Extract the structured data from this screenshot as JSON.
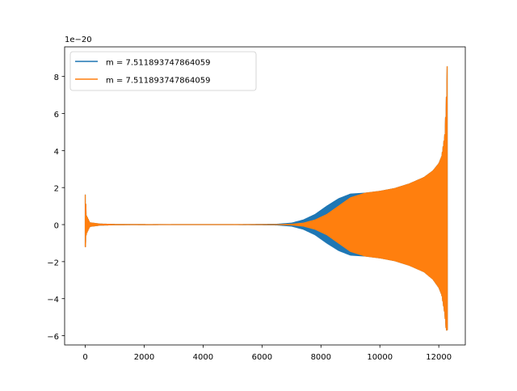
{
  "chart_data": {
    "type": "line",
    "title": "",
    "xlabel": "",
    "ylabel": "",
    "y_offset_label": "1e−20",
    "xlim": [
      -700,
      12900
    ],
    "ylim": [
      -6.5,
      9.6
    ],
    "xticks": [
      0,
      2000,
      4000,
      6000,
      8000,
      10000,
      12000
    ],
    "xtick_labels": [
      "0",
      "2000",
      "4000",
      "6000",
      "8000",
      "10000",
      "12000"
    ],
    "yticks": [
      -6,
      -4,
      -2,
      0,
      2,
      4,
      6,
      8
    ],
    "ytick_labels": [
      "−6",
      "−4",
      "−2",
      "0",
      "2",
      "4",
      "6",
      "8"
    ],
    "grid": false,
    "legend_position": "upper-left",
    "series": [
      {
        "name": "m = 7.511893747864059",
        "color": "#1f77b4",
        "envelope_x": [
          0,
          30,
          150,
          500,
          1000,
          3000,
          5000,
          6500,
          7000,
          7400,
          7800,
          8200,
          8600,
          9000,
          9500,
          10000,
          10500,
          11000,
          11500,
          11800,
          12000,
          12100,
          12200,
          12250,
          12290
        ],
        "envelope_upper": [
          1.6,
          0.5,
          0.1,
          0.03,
          0.01,
          0.0,
          0.0,
          0.02,
          0.08,
          0.25,
          0.55,
          1.0,
          1.4,
          1.65,
          1.7,
          1.8,
          1.95,
          2.2,
          2.55,
          2.9,
          3.3,
          3.7,
          4.8,
          6.5,
          8.9
        ],
        "envelope_lower": [
          -1.2,
          -0.5,
          -0.1,
          -0.03,
          -0.01,
          0.0,
          0.0,
          -0.02,
          -0.08,
          -0.25,
          -0.55,
          -1.0,
          -1.4,
          -1.65,
          -1.7,
          -1.8,
          -1.95,
          -2.2,
          -2.55,
          -2.95,
          -3.4,
          -3.8,
          -4.8,
          -5.7,
          -5.7
        ]
      },
      {
        "name": "m = 7.511893747864059",
        "color": "#ff7f0e",
        "envelope_x": [
          0,
          30,
          150,
          500,
          1000,
          3000,
          5000,
          6500,
          7000,
          7400,
          7800,
          8200,
          8600,
          9000,
          9500,
          10000,
          10500,
          11000,
          11500,
          11800,
          12000,
          12100,
          12200,
          12250,
          12290
        ],
        "envelope_upper": [
          1.6,
          0.5,
          0.1,
          0.03,
          0.01,
          0.0,
          0.0,
          0.0,
          0.02,
          0.08,
          0.25,
          0.55,
          1.0,
          1.45,
          1.7,
          1.8,
          1.95,
          2.2,
          2.55,
          2.9,
          3.3,
          3.7,
          4.8,
          6.5,
          8.9
        ],
        "envelope_lower": [
          -1.2,
          -0.5,
          -0.1,
          -0.03,
          -0.01,
          0.0,
          0.0,
          0.0,
          -0.02,
          -0.08,
          -0.25,
          -0.55,
          -1.0,
          -1.45,
          -1.7,
          -1.8,
          -1.95,
          -2.2,
          -2.55,
          -2.95,
          -3.4,
          -3.8,
          -4.8,
          -5.7,
          -5.7
        ]
      }
    ]
  }
}
